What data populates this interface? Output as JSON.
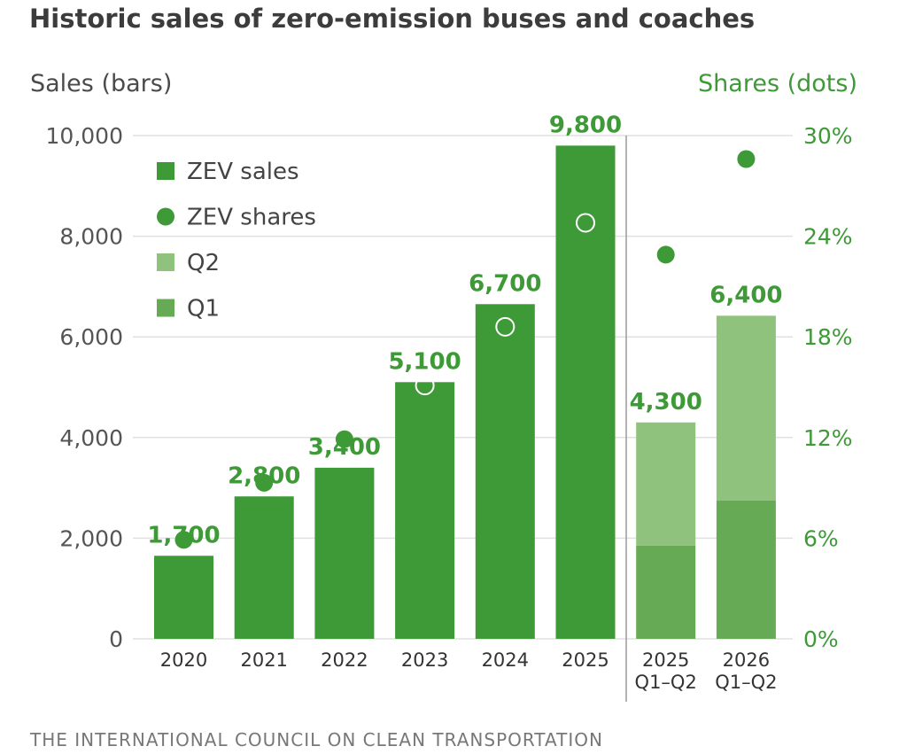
{
  "chart_data": {
    "type": "bar",
    "title": "Historic sales of zero-emission buses and coaches",
    "ylabel_left": "Sales (bars)",
    "ylabel_right": "Shares (dots)",
    "left_ticks": [
      "0",
      "2,000",
      "4,000",
      "6,000",
      "8,000",
      "10,000"
    ],
    "right_ticks": [
      "0%",
      "6%",
      "12%",
      "18%",
      "24%",
      "30%"
    ],
    "ylim_left": [
      0,
      10000
    ],
    "ylim_right": [
      0,
      30
    ],
    "grid": true,
    "legend_position": "top-left",
    "legend": [
      {
        "label": "ZEV sales",
        "marker": "square",
        "color": "#3d9a37"
      },
      {
        "label": "ZEV shares",
        "marker": "circle",
        "color": "#3d9a37"
      },
      {
        "label": "Q2",
        "marker": "square",
        "color": "#8fc37d"
      },
      {
        "label": "Q1",
        "marker": "square",
        "color": "#66aa55"
      }
    ],
    "categories": [
      {
        "line1": "2020",
        "line2": ""
      },
      {
        "line1": "2021",
        "line2": ""
      },
      {
        "line1": "2022",
        "line2": ""
      },
      {
        "line1": "2023",
        "line2": ""
      },
      {
        "line1": "2024",
        "line2": ""
      },
      {
        "line1": "2025",
        "line2": ""
      },
      {
        "line1": "2025",
        "line2": "Q1–Q2"
      },
      {
        "line1": "2026",
        "line2": "Q1–Q2"
      }
    ],
    "bars": [
      {
        "value": 1650,
        "label": "1,700",
        "kind": "annual"
      },
      {
        "value": 2830,
        "label": "2,800",
        "kind": "annual"
      },
      {
        "value": 3400,
        "label": "3,400",
        "kind": "annual"
      },
      {
        "value": 5100,
        "label": "5,100",
        "kind": "annual"
      },
      {
        "value": 6650,
        "label": "6,700",
        "kind": "annual"
      },
      {
        "value": 9800,
        "label": "9,800",
        "kind": "annual"
      },
      {
        "value": 4300,
        "q1": 1850,
        "label": "4,300",
        "kind": "stacked"
      },
      {
        "value": 6420,
        "q1": 2750,
        "label": "6,400",
        "kind": "stacked"
      }
    ],
    "shares": [
      {
        "value": 5.9,
        "style": "filled"
      },
      {
        "value": 9.3,
        "style": "filled"
      },
      {
        "value": 11.9,
        "style": "filled"
      },
      {
        "value": 15.1,
        "style": "hollow"
      },
      {
        "value": 18.6,
        "style": "hollow"
      },
      {
        "value": 24.8,
        "style": "hollow"
      },
      {
        "value": 22.9,
        "style": "filled"
      },
      {
        "value": 28.6,
        "style": "filled"
      }
    ],
    "colors": {
      "sales": "#3d9a37",
      "q2": "#8fc37d",
      "q1": "#66aa55",
      "grid": "#e0e0e0"
    }
  },
  "source": "THE INTERNATIONAL COUNCIL ON CLEAN TRANSPORTATION"
}
